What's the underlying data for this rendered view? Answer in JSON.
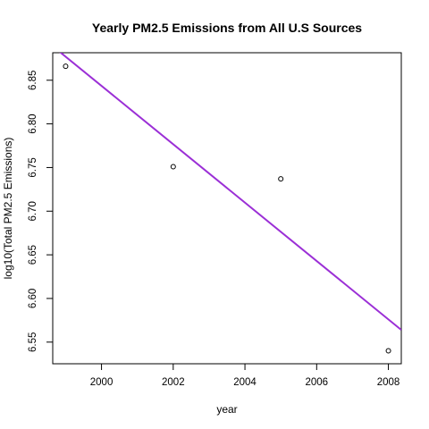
{
  "chart_data": {
    "type": "scatter",
    "title": "Yearly PM2.5 Emissions from All U.S Sources",
    "xlabel": "year",
    "ylabel": "log10(Total PM2.5 Emissions)",
    "xlim": [
      1998.64,
      2008.36
    ],
    "ylim": [
      6.5252,
      6.8815
    ],
    "x_ticks": [
      2000,
      2002,
      2004,
      2006,
      2008
    ],
    "y_ticks": [
      6.55,
      6.6,
      6.65,
      6.7,
      6.75,
      6.8,
      6.85
    ],
    "points": [
      {
        "x": 1999,
        "y": 6.866
      },
      {
        "x": 2002,
        "y": 6.751
      },
      {
        "x": 2005,
        "y": 6.737
      },
      {
        "x": 2008,
        "y": 6.54
      }
    ],
    "fit_line": {
      "start": {
        "x": 1998.64,
        "y": 6.889
      },
      "end": {
        "x": 2008.36,
        "y": 6.564
      }
    },
    "colors": {
      "fit_line": "#9b2fd6",
      "points": "#000000"
    },
    "grid": false,
    "legend": "none"
  }
}
